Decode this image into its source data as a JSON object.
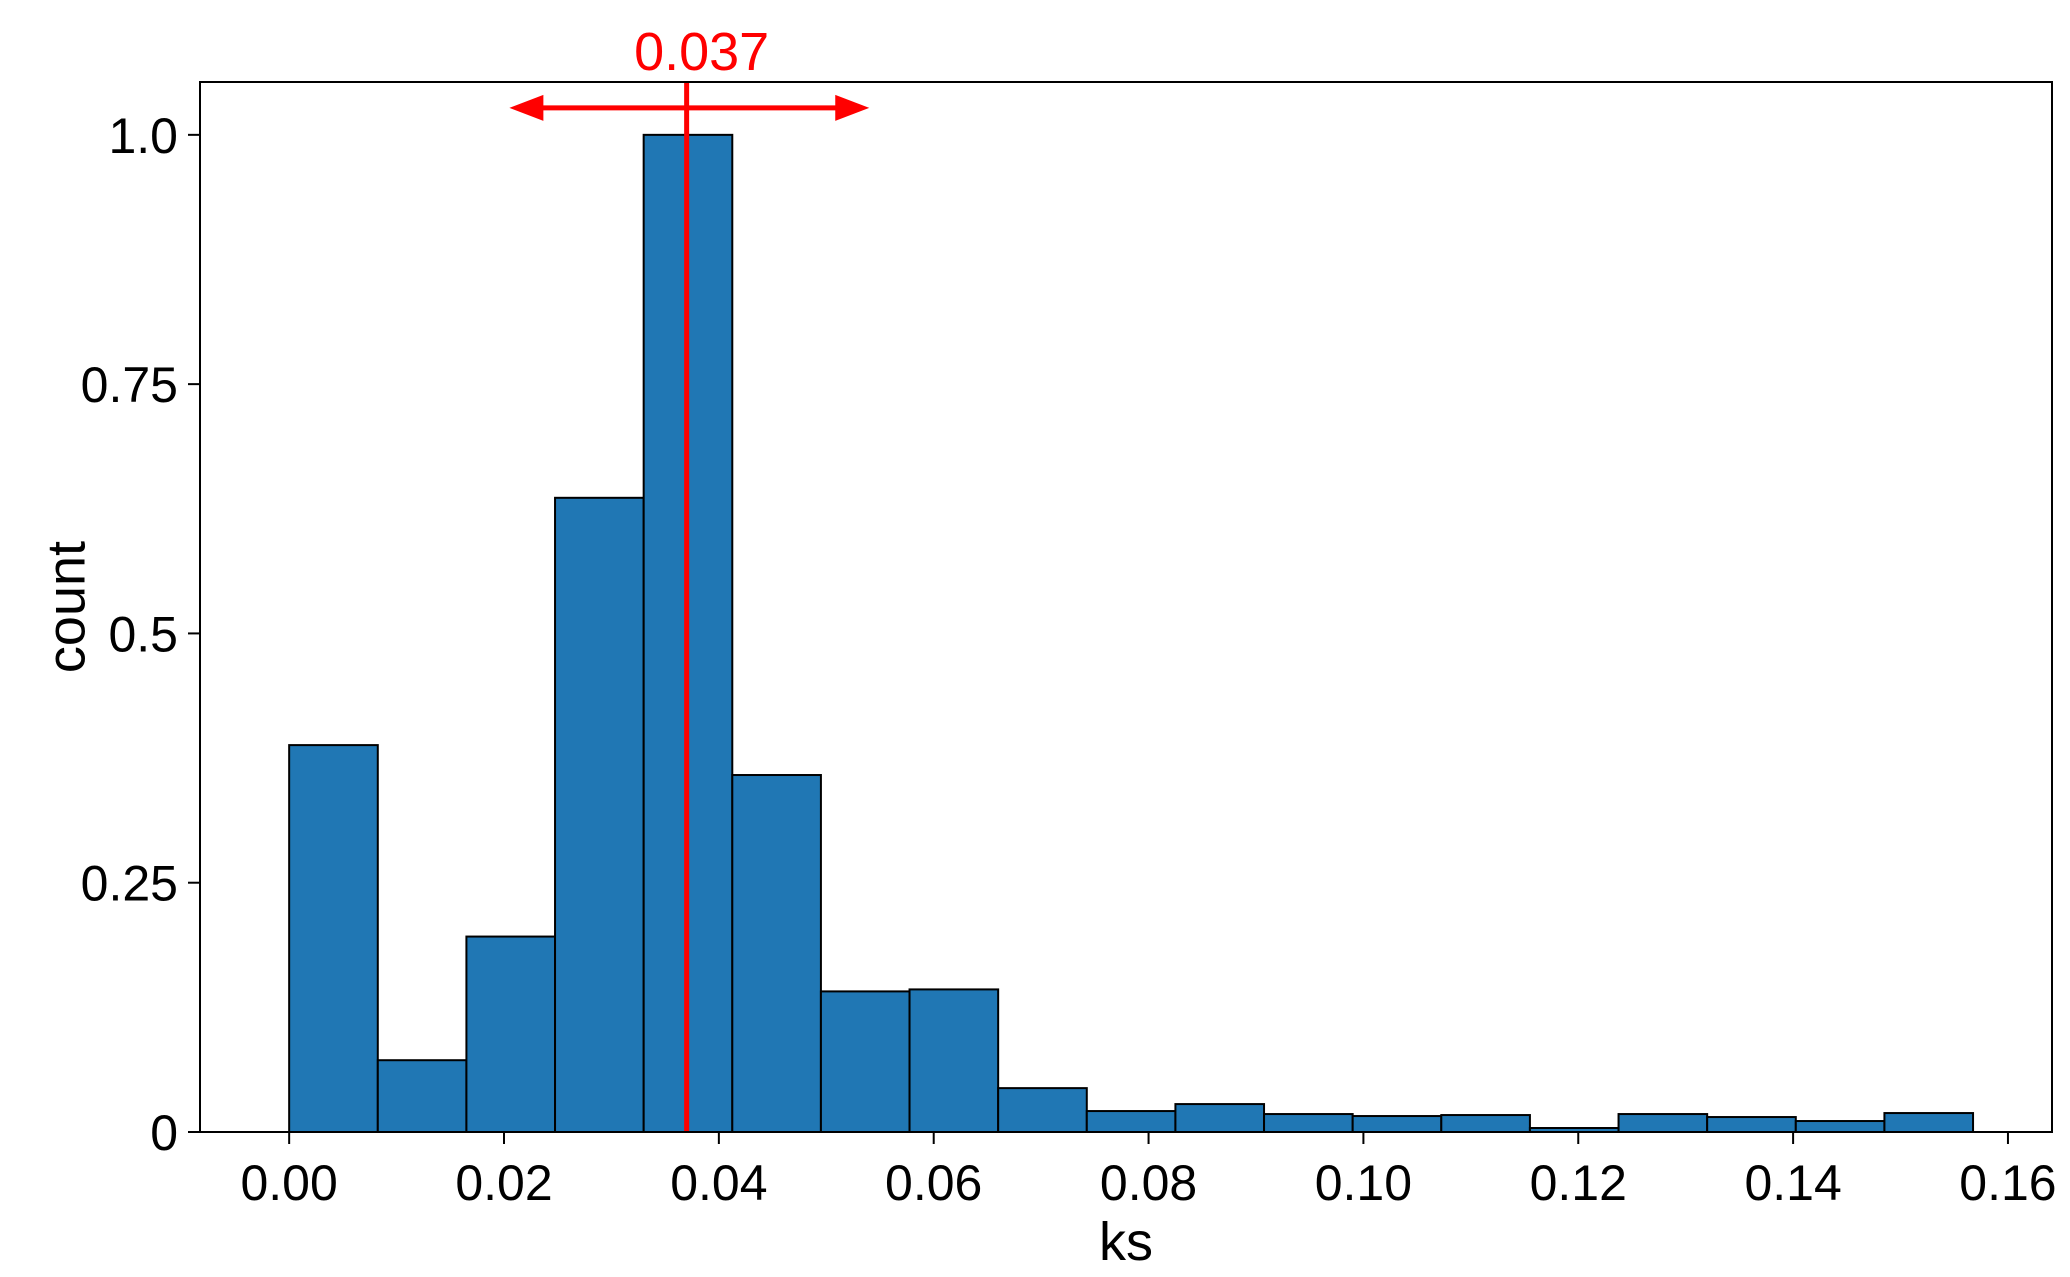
{
  "chart_data": {
    "type": "bar",
    "title": "",
    "xlabel": "ks",
    "ylabel": "count",
    "xlim": [
      -0.0083,
      0.1641
    ],
    "ylim": [
      0,
      1.053
    ],
    "bin_width": 0.00825,
    "bins": [
      {
        "x0": 0.0,
        "x1": 0.00825,
        "value": 0.388
      },
      {
        "x0": 0.00825,
        "x1": 0.0165,
        "value": 0.072
      },
      {
        "x0": 0.0165,
        "x1": 0.02475,
        "value": 0.196
      },
      {
        "x0": 0.02475,
        "x1": 0.033,
        "value": 0.636
      },
      {
        "x0": 0.033,
        "x1": 0.04125,
        "value": 1.0
      },
      {
        "x0": 0.04125,
        "x1": 0.0495,
        "value": 0.358
      },
      {
        "x0": 0.0495,
        "x1": 0.05775,
        "value": 0.141
      },
      {
        "x0": 0.05775,
        "x1": 0.066,
        "value": 0.143
      },
      {
        "x0": 0.066,
        "x1": 0.07425,
        "value": 0.044
      },
      {
        "x0": 0.07425,
        "x1": 0.0825,
        "value": 0.021
      },
      {
        "x0": 0.0825,
        "x1": 0.09075,
        "value": 0.028
      },
      {
        "x0": 0.09075,
        "x1": 0.099,
        "value": 0.018
      },
      {
        "x0": 0.099,
        "x1": 0.10725,
        "value": 0.016
      },
      {
        "x0": 0.10725,
        "x1": 0.1155,
        "value": 0.017
      },
      {
        "x0": 0.1155,
        "x1": 0.12375,
        "value": 0.004
      },
      {
        "x0": 0.12375,
        "x1": 0.132,
        "value": 0.018
      },
      {
        "x0": 0.132,
        "x1": 0.14025,
        "value": 0.015
      },
      {
        "x0": 0.14025,
        "x1": 0.1485,
        "value": 0.011
      },
      {
        "x0": 0.1485,
        "x1": 0.15675,
        "value": 0.019
      }
    ],
    "xticks": [
      {
        "value": 0.0,
        "label": "0.00"
      },
      {
        "value": 0.02,
        "label": "0.02"
      },
      {
        "value": 0.04,
        "label": "0.04"
      },
      {
        "value": 0.06,
        "label": "0.06"
      },
      {
        "value": 0.08,
        "label": "0.08"
      },
      {
        "value": 0.1,
        "label": "0.10"
      },
      {
        "value": 0.12,
        "label": "0.12"
      },
      {
        "value": 0.14,
        "label": "0.14"
      },
      {
        "value": 0.16,
        "label": "0.16"
      }
    ],
    "yticks": [
      {
        "value": 0,
        "label": "0"
      },
      {
        "value": 0.25,
        "label": "0.25"
      },
      {
        "value": 0.5,
        "label": "0.5"
      },
      {
        "value": 0.75,
        "label": "0.75"
      },
      {
        "value": 1.0,
        "label": "1.0"
      }
    ],
    "annotation": {
      "value": 0.037,
      "label": "0.037",
      "arrow_from": 0.0205,
      "arrow_to": 0.054,
      "arrow_y": 1.027
    },
    "grid": false,
    "colors": {
      "bar_fill": "#2077b4",
      "bar_edge": "#000000",
      "annotation": "#ff0000",
      "axes": "#000000"
    }
  }
}
